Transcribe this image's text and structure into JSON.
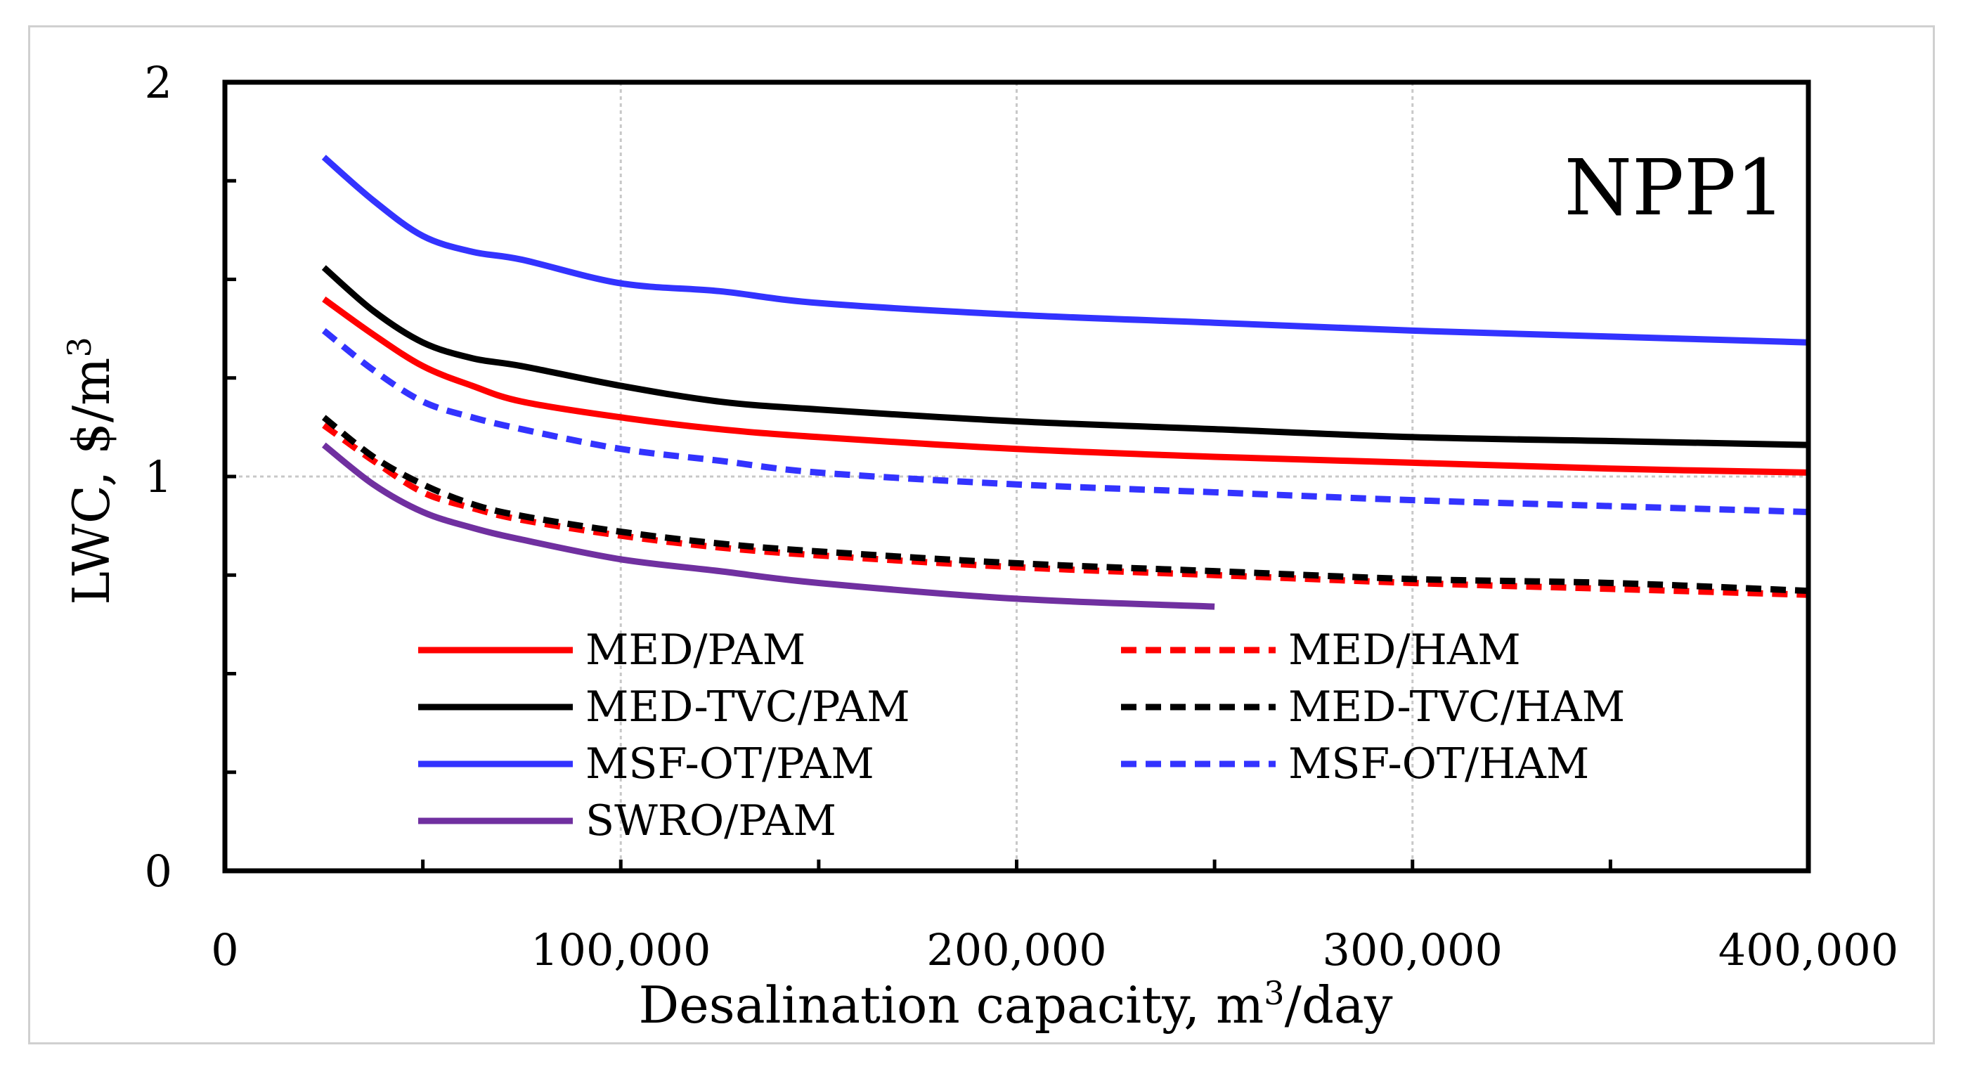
{
  "chart_data": {
    "type": "line",
    "panel_label": "NPP1",
    "xlabel": {
      "main": "Desalination capacity, m",
      "sup": "3",
      "tail": "/day"
    },
    "ylabel": {
      "main": "LWC, $/m",
      "sup": "3"
    },
    "xlim": [
      0,
      400000
    ],
    "ylim": [
      0,
      2
    ],
    "x_ticks": [
      {
        "value": 0,
        "label": "0"
      },
      {
        "value": 100000,
        "label": "100,000"
      },
      {
        "value": 200000,
        "label": "200,000"
      },
      {
        "value": 300000,
        "label": "300,000"
      },
      {
        "value": 400000,
        "label": "400,000"
      }
    ],
    "y_ticks": [
      {
        "value": 0,
        "label": "0"
      },
      {
        "value": 1,
        "label": "1"
      },
      {
        "value": 2,
        "label": "2"
      }
    ],
    "x_minor_ticks": [
      50000,
      150000,
      250000,
      350000
    ],
    "y_minor_ticks": [
      0.25,
      0.5,
      0.75,
      1.25,
      1.5,
      1.75
    ],
    "grid": {
      "x": true,
      "y": "1 only"
    },
    "series": [
      {
        "name": "MED/PAM",
        "color": "#ff0000",
        "dash": "solid",
        "x": [
          25000,
          37500,
          50000,
          62500,
          75000,
          100000,
          125000,
          150000,
          200000,
          250000,
          300000,
          350000,
          400000
        ],
        "y": [
          1.45,
          1.36,
          1.28,
          1.23,
          1.19,
          1.15,
          1.12,
          1.1,
          1.07,
          1.05,
          1.035,
          1.02,
          1.01
        ]
      },
      {
        "name": "MED/HAM",
        "color": "#ff0000",
        "dash": "dashed",
        "x": [
          25000,
          37500,
          50000,
          62500,
          75000,
          100000,
          125000,
          150000,
          200000,
          250000,
          300000,
          350000,
          400000
        ],
        "y": [
          1.13,
          1.04,
          0.96,
          0.92,
          0.89,
          0.85,
          0.82,
          0.8,
          0.77,
          0.75,
          0.73,
          0.715,
          0.7
        ]
      },
      {
        "name": "MED-TVC/PAM",
        "color": "#000000",
        "dash": "solid",
        "x": [
          25000,
          37500,
          50000,
          62500,
          75000,
          100000,
          125000,
          150000,
          200000,
          250000,
          300000,
          350000,
          400000
        ],
        "y": [
          1.53,
          1.42,
          1.34,
          1.3,
          1.28,
          1.23,
          1.19,
          1.17,
          1.14,
          1.12,
          1.1,
          1.09,
          1.08
        ]
      },
      {
        "name": "MED-TVC/HAM",
        "color": "#000000",
        "dash": "dashed",
        "x": [
          25000,
          37500,
          50000,
          62500,
          75000,
          100000,
          125000,
          150000,
          200000,
          250000,
          300000,
          350000,
          400000
        ],
        "y": [
          1.15,
          1.05,
          0.98,
          0.93,
          0.9,
          0.86,
          0.83,
          0.81,
          0.78,
          0.76,
          0.74,
          0.73,
          0.71
        ]
      },
      {
        "name": "MSF-OT/PAM",
        "color": "#3333ff",
        "dash": "solid",
        "x": [
          25000,
          37500,
          50000,
          62500,
          75000,
          100000,
          125000,
          150000,
          200000,
          250000,
          300000,
          350000,
          400000
        ],
        "y": [
          1.81,
          1.7,
          1.61,
          1.57,
          1.55,
          1.49,
          1.47,
          1.44,
          1.41,
          1.39,
          1.37,
          1.355,
          1.34
        ]
      },
      {
        "name": "MSF-OT/HAM",
        "color": "#3333ff",
        "dash": "dashed",
        "x": [
          25000,
          37500,
          50000,
          62500,
          75000,
          100000,
          125000,
          150000,
          200000,
          250000,
          300000,
          350000,
          400000
        ],
        "y": [
          1.37,
          1.27,
          1.19,
          1.15,
          1.12,
          1.07,
          1.04,
          1.01,
          0.98,
          0.96,
          0.94,
          0.925,
          0.91
        ]
      },
      {
        "name": "SWRO/PAM",
        "color": "#7030a0",
        "dash": "solid",
        "x": [
          25000,
          37500,
          50000,
          62500,
          75000,
          100000,
          125000,
          150000,
          200000,
          250000
        ],
        "y": [
          1.08,
          0.98,
          0.91,
          0.87,
          0.84,
          0.79,
          0.76,
          0.73,
          0.69,
          0.67
        ]
      }
    ],
    "legend_layout": [
      {
        "series": 0,
        "col": 0,
        "row": 0
      },
      {
        "series": 1,
        "col": 1,
        "row": 0
      },
      {
        "series": 2,
        "col": 0,
        "row": 1
      },
      {
        "series": 3,
        "col": 1,
        "row": 1
      },
      {
        "series": 4,
        "col": 0,
        "row": 2
      },
      {
        "series": 5,
        "col": 1,
        "row": 2
      },
      {
        "series": 6,
        "col": 0,
        "row": 3
      }
    ]
  }
}
